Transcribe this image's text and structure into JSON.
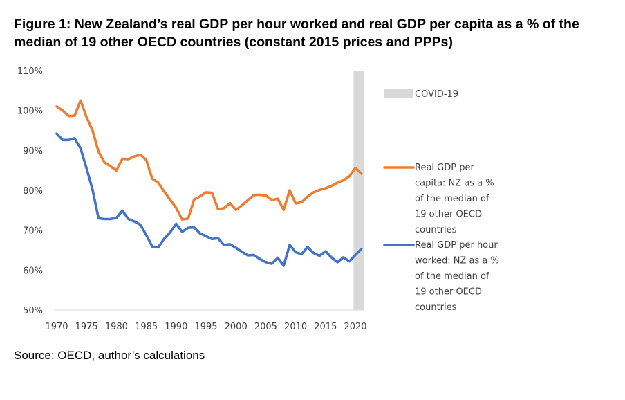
{
  "title": "Figure 1: New Zealand’s real GDP per hour worked and real GDP per capita as a % of the median of 19 other OECD countries (constant 2015 prices and PPPs)",
  "source": "Source: OECD, author’s calculations",
  "chart_data": {
    "type": "line",
    "ylim": [
      50,
      110
    ],
    "xlim": [
      1970,
      2021
    ],
    "yticks": [
      "50%",
      "60%",
      "70%",
      "80%",
      "90%",
      "100%",
      "110%"
    ],
    "xticks": [
      "1970",
      "1975",
      "1980",
      "1985",
      "1990",
      "1995",
      "2000",
      "2005",
      "2010",
      "2015",
      "2020"
    ],
    "grid": false,
    "legend_position": "right",
    "covid_band": {
      "label": "COVID-19",
      "from": 2019.7,
      "to": 2021.5,
      "color": "#d9d9d9"
    },
    "series": [
      {
        "name": "Real GDP per capita: NZ as a % of the median of 19 other OECD countries",
        "legend_lines": [
          "Real GDP per",
          "capita: NZ as a %",
          "of the median of",
          "19 other OECD",
          "countries"
        ],
        "color": "#ed7d31",
        "x": [
          1970,
          1971,
          1972,
          1973,
          1974,
          1975,
          1976,
          1977,
          1978,
          1979,
          1980,
          1981,
          1982,
          1983,
          1984,
          1985,
          1986,
          1987,
          1988,
          1989,
          1990,
          1991,
          1992,
          1993,
          1994,
          1995,
          1996,
          1997,
          1998,
          1999,
          2000,
          2001,
          2002,
          2003,
          2004,
          2005,
          2006,
          2007,
          2008,
          2009,
          2010,
          2011,
          2012,
          2013,
          2014,
          2015,
          2016,
          2017,
          2018,
          2019,
          2020,
          2021
        ],
        "values": [
          101.0,
          100.0,
          98.6,
          98.7,
          102.5,
          98.3,
          95.0,
          89.7,
          87.0,
          86.0,
          85.0,
          87.9,
          87.8,
          88.5,
          88.9,
          87.6,
          82.9,
          81.9,
          79.7,
          77.6,
          75.6,
          72.7,
          72.9,
          77.7,
          78.5,
          79.5,
          79.4,
          75.3,
          75.5,
          76.8,
          75.1,
          76.2,
          77.5,
          78.8,
          78.9,
          78.7,
          77.6,
          77.9,
          75.1,
          80.0,
          76.7,
          77.0,
          78.4,
          79.5,
          80.1,
          80.5,
          81.1,
          81.9,
          82.5,
          83.5,
          85.6,
          84.2
        ]
      },
      {
        "name": "Real GDP per hour worked: NZ as a % of the median of 19 other OECD countries",
        "legend_lines": [
          "Real GDP per hour",
          "worked: NZ as a %",
          "of the median of",
          "19 other OECD",
          "countries"
        ],
        "color": "#4472c4",
        "x": [
          1970,
          1971,
          1972,
          1973,
          1974,
          1975,
          1976,
          1977,
          1978,
          1979,
          1980,
          1981,
          1982,
          1983,
          1984,
          1985,
          1986,
          1987,
          1988,
          1989,
          1990,
          1991,
          1992,
          1993,
          1994,
          1995,
          1996,
          1997,
          1998,
          1999,
          2000,
          2001,
          2002,
          2003,
          2004,
          2005,
          2006,
          2007,
          2008,
          2009,
          2010,
          2011,
          2012,
          2013,
          2014,
          2015,
          2016,
          2017,
          2018,
          2019,
          2020,
          2021
        ],
        "values": [
          94.2,
          92.6,
          92.6,
          93.0,
          90.5,
          85.5,
          80.2,
          73.0,
          72.8,
          72.8,
          73.1,
          74.9,
          72.8,
          72.2,
          71.4,
          68.8,
          65.9,
          65.7,
          67.9,
          69.5,
          71.6,
          69.6,
          70.6,
          70.7,
          69.2,
          68.5,
          67.8,
          68.0,
          66.3,
          66.5,
          65.6,
          64.6,
          63.7,
          63.8,
          62.8,
          62.0,
          61.6,
          63.1,
          61.1,
          66.3,
          64.5,
          64.0,
          65.8,
          64.3,
          63.6,
          64.7,
          63.2,
          62.0,
          63.2,
          62.2,
          63.8,
          65.3
        ]
      }
    ]
  }
}
